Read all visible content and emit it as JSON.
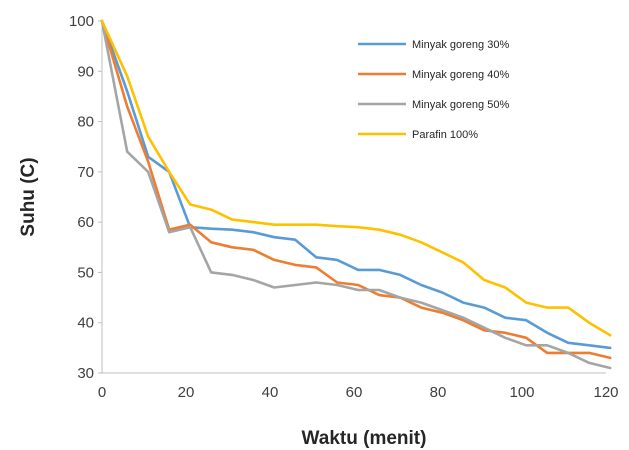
{
  "chart_data": {
    "type": "line",
    "title": "",
    "xlabel": "Waktu (menit)",
    "ylabel": "Suhu (C)",
    "xlim": [
      0,
      120
    ],
    "ylim": [
      30,
      100
    ],
    "xticks": [
      "0",
      "20",
      "40",
      "60",
      "80",
      "100",
      "120"
    ],
    "yticks": [
      "30",
      "40",
      "50",
      "60",
      "70",
      "80",
      "90",
      "100"
    ],
    "grid": false,
    "legend_position": "top-right",
    "series": [
      {
        "name": "Minyak goreng 30%",
        "color": "#5b9bd5",
        "x": [
          0,
          6,
          11,
          16,
          21,
          26,
          31,
          36,
          41,
          46,
          51,
          56,
          61,
          66,
          71,
          76,
          81,
          86,
          91,
          96,
          101,
          106,
          111,
          116,
          121
        ],
        "y": [
          100,
          86,
          73,
          70,
          59,
          58.7,
          58.5,
          58,
          57,
          56.5,
          53,
          52.5,
          50.5,
          50.5,
          49.5,
          47.5,
          46,
          44,
          43,
          41,
          40.5,
          38,
          36,
          35.5,
          35
        ]
      },
      {
        "name": "Minyak goreng 40%",
        "color": "#ed7d31",
        "x": [
          0,
          6,
          11,
          16,
          21,
          26,
          31,
          36,
          41,
          46,
          51,
          56,
          61,
          66,
          71,
          76,
          81,
          86,
          91,
          96,
          101,
          106,
          111,
          116,
          121
        ],
        "y": [
          100,
          83,
          72,
          58.5,
          59.5,
          56,
          55,
          54.5,
          52.5,
          51.5,
          51,
          48,
          47.5,
          45.5,
          45,
          43,
          42,
          40.5,
          38.5,
          38,
          37,
          34,
          34,
          34,
          33
        ]
      },
      {
        "name": "Minyak goreng 50%",
        "color": "#a5a5a5",
        "x": [
          0,
          6,
          11,
          16,
          21,
          26,
          31,
          36,
          41,
          46,
          51,
          56,
          61,
          66,
          71,
          76,
          81,
          86,
          91,
          96,
          101,
          106,
          111,
          116,
          121
        ],
        "y": [
          100,
          74,
          70,
          58,
          59,
          50,
          49.5,
          48.5,
          47,
          47.5,
          48,
          47.5,
          46.5,
          46.5,
          45,
          44,
          42.5,
          41,
          39,
          37,
          35.5,
          35.5,
          34,
          32,
          31
        ]
      },
      {
        "name": "Parafin 100%",
        "color": "#ffc000",
        "x": [
          0,
          6,
          11,
          16,
          21,
          26,
          31,
          36,
          41,
          46,
          51,
          56,
          61,
          66,
          71,
          76,
          81,
          86,
          91,
          96,
          101,
          106,
          111,
          116,
          121
        ],
        "y": [
          100,
          89,
          77,
          70,
          63.5,
          62.5,
          60.5,
          60,
          59.5,
          59.5,
          59.5,
          59.2,
          59,
          58.5,
          57.5,
          56,
          54,
          52,
          48.5,
          47,
          44,
          43,
          43,
          40,
          37.5
        ]
      }
    ]
  }
}
